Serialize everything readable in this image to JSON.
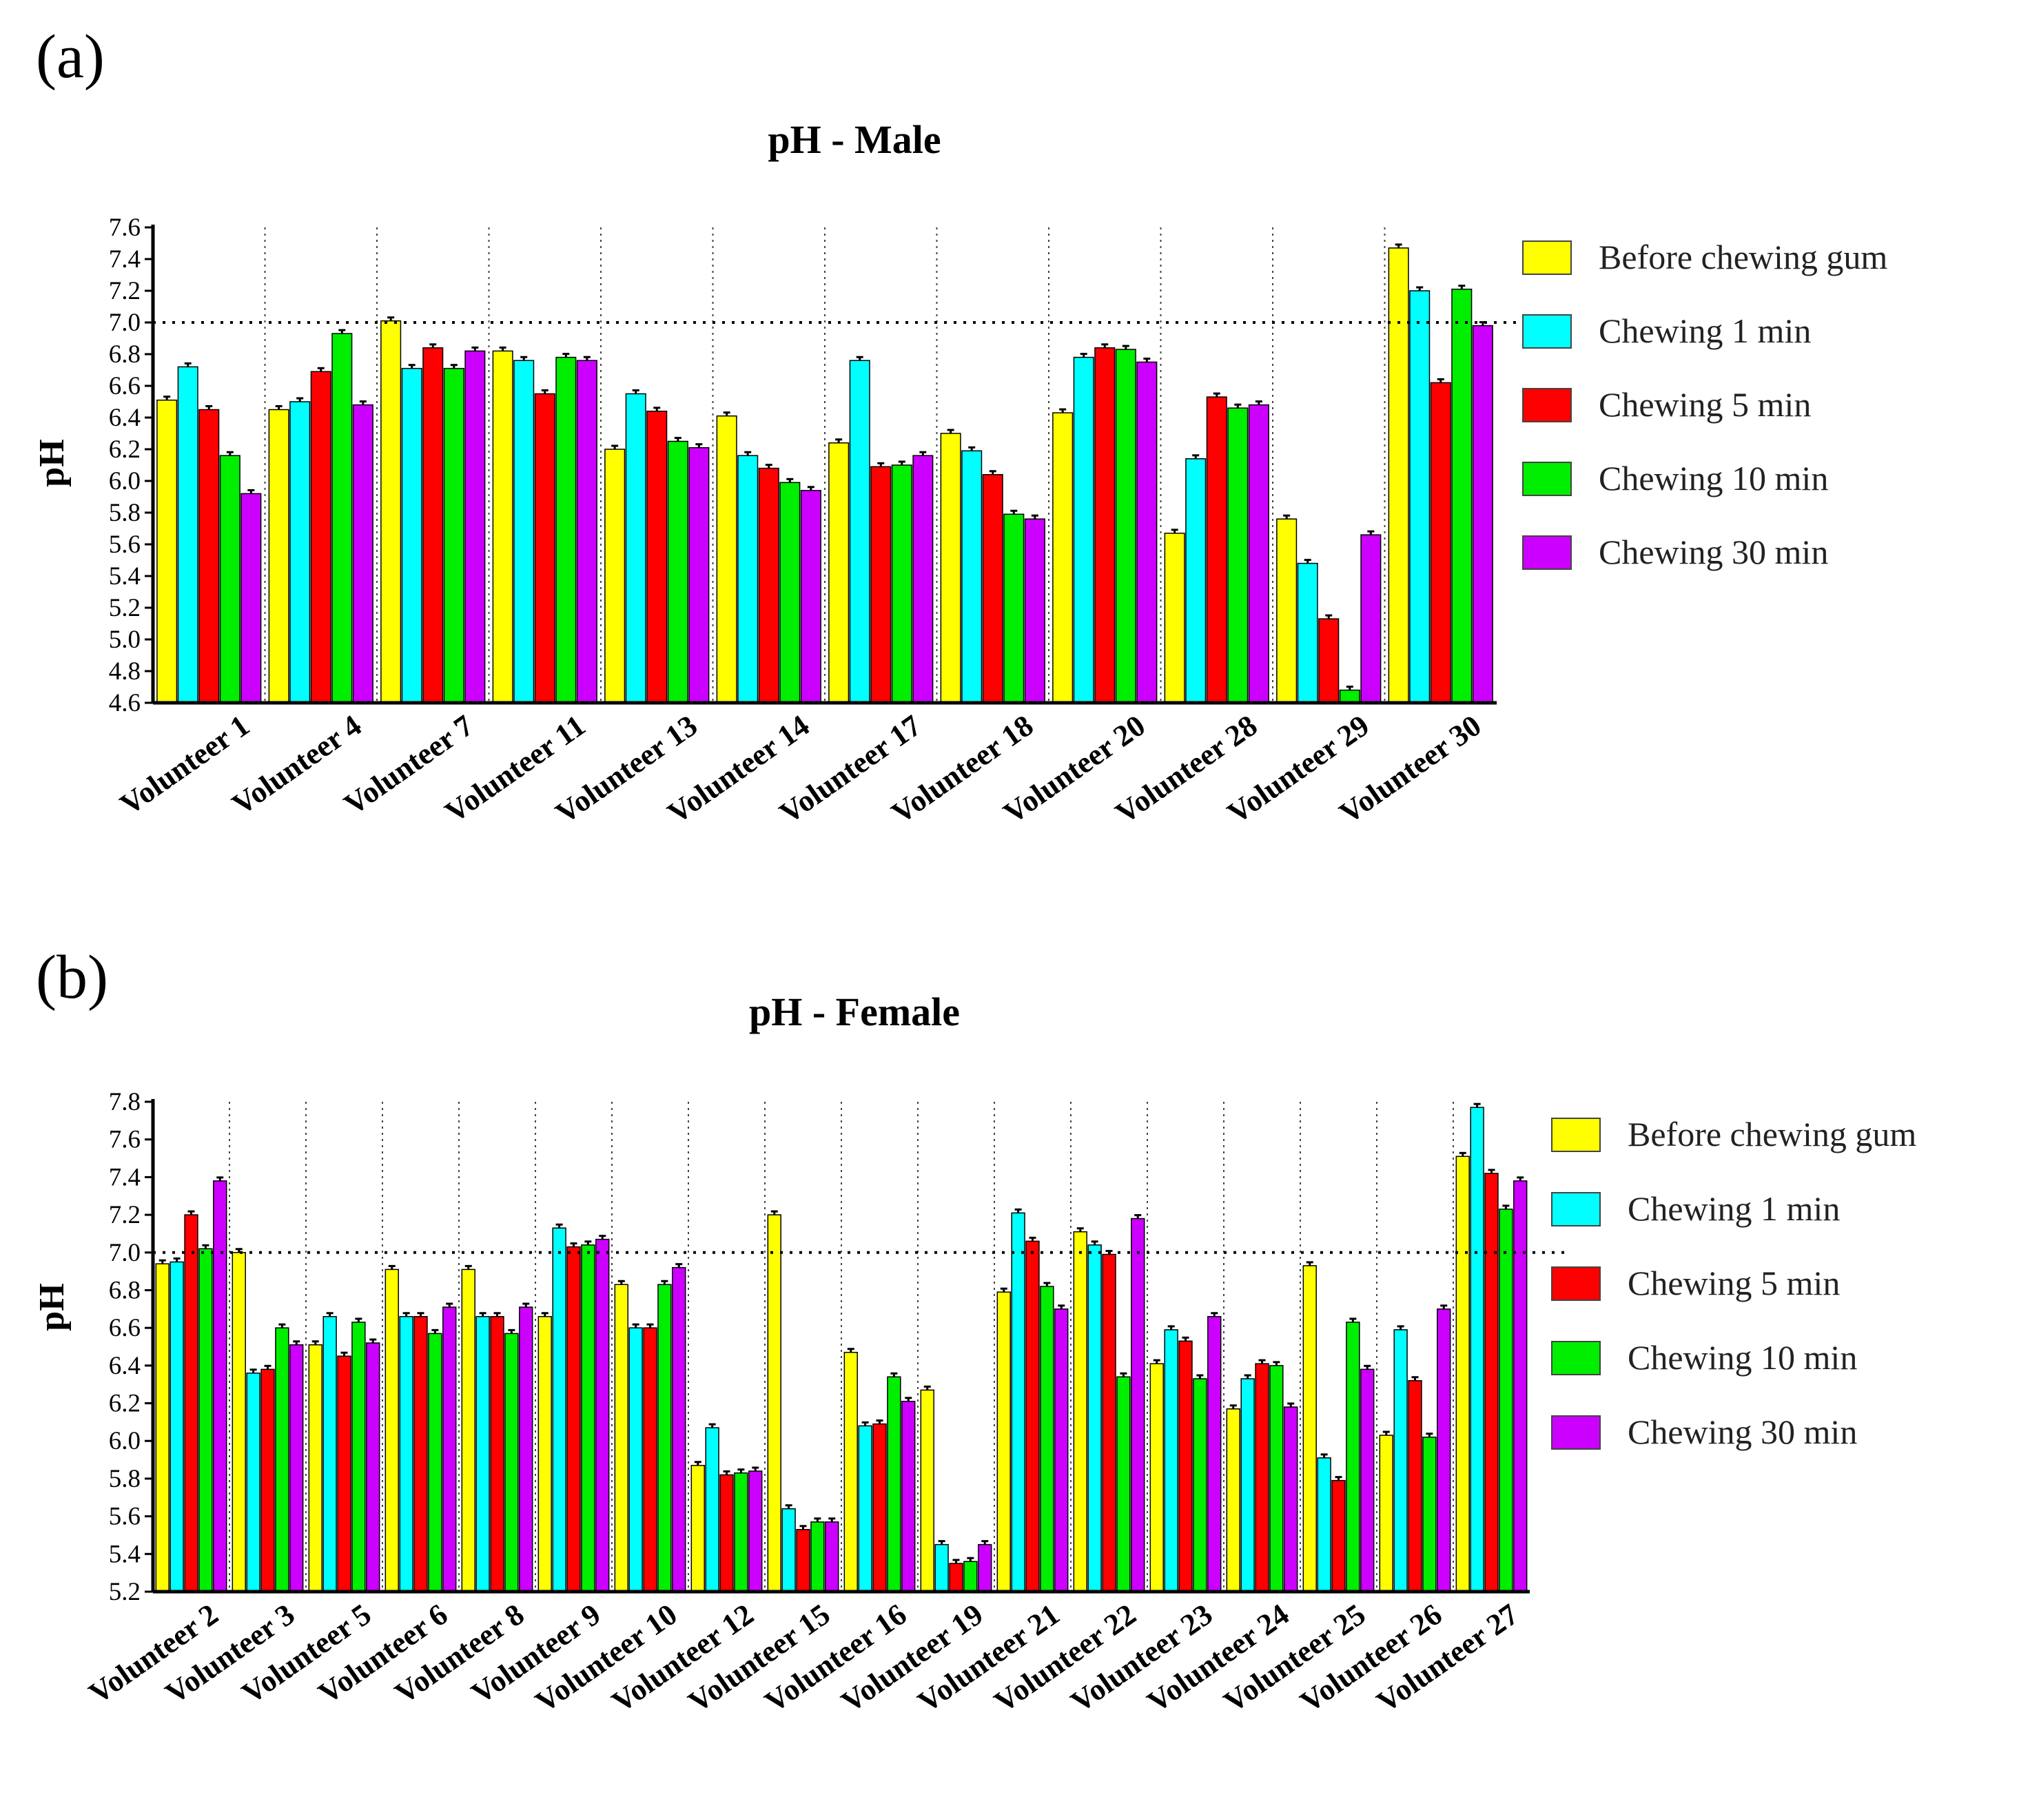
{
  "chart_data": [
    {
      "panel": "(a)",
      "type": "bar",
      "title": "pH - Male",
      "ylabel": "pH",
      "xlabel": "",
      "ylim": [
        4.6,
        7.6
      ],
      "ystep": 0.2,
      "yticks": [
        "4.6",
        "4.8",
        "5.0",
        "5.2",
        "5.4",
        "5.6",
        "5.8",
        "6.0",
        "6.2",
        "6.4",
        "6.6",
        "6.8",
        "7.0",
        "7.2",
        "7.4",
        "7.6"
      ],
      "reference_line": 7.0,
      "categories": [
        "Volunteer 1",
        "Volunteer 4",
        "Volunteer 7",
        "Volunteer 11",
        "Volunteer 13",
        "Volunteer 14",
        "Volunteer 17",
        "Volunteer 18",
        "Volunteer 20",
        "Volunteer 28",
        "Volunteer 29",
        "Volunteer 30"
      ],
      "series": [
        {
          "name": "Before chewing gum",
          "color": "#ffff00",
          "values": [
            6.51,
            6.45,
            7.01,
            6.82,
            6.2,
            6.41,
            6.24,
            6.3,
            6.43,
            5.67,
            5.76,
            7.47
          ]
        },
        {
          "name": "Chewing 1 min",
          "color": "#00ffff",
          "values": [
            6.72,
            6.5,
            6.71,
            6.76,
            6.55,
            6.16,
            6.76,
            6.19,
            6.78,
            6.14,
            5.48,
            7.2
          ]
        },
        {
          "name": "Chewing 5 min",
          "color": "#ff0000",
          "values": [
            6.45,
            6.69,
            6.84,
            6.55,
            6.44,
            6.08,
            6.09,
            6.04,
            6.84,
            6.53,
            5.13,
            6.62
          ]
        },
        {
          "name": "Chewing 10 min",
          "color": "#00ee00",
          "values": [
            6.16,
            6.93,
            6.71,
            6.78,
            6.25,
            5.99,
            6.1,
            5.79,
            6.83,
            6.46,
            4.68,
            7.21
          ]
        },
        {
          "name": "Chewing 30 min",
          "color": "#cc00ff",
          "values": [
            5.92,
            6.48,
            6.82,
            6.76,
            6.21,
            5.94,
            6.16,
            5.76,
            6.75,
            6.48,
            5.66,
            6.98
          ]
        }
      ],
      "legend": [
        "Before chewing gum",
        "Chewing 1 min",
        "Chewing 5 min",
        "Chewing 10 min",
        "Chewing 30 min"
      ],
      "legend_position": "right"
    },
    {
      "panel": "(b)",
      "type": "bar",
      "title": "pH - Female",
      "ylabel": "pH",
      "xlabel": "",
      "ylim": [
        5.2,
        7.8
      ],
      "ystep": 0.2,
      "yticks": [
        "5.2",
        "5.4",
        "5.6",
        "5.8",
        "6.0",
        "6.2",
        "6.4",
        "6.6",
        "6.8",
        "7.0",
        "7.2",
        "7.4",
        "7.6",
        "7.8"
      ],
      "reference_line": 7.0,
      "categories": [
        "Volunteer 2",
        "Volunteer 3",
        "Volunteer 5",
        "Volunteer 6",
        "Volunteer 8",
        "Volunteer 9",
        "Volunteer 10",
        "Volunteer 12",
        "Volunteer 15",
        "Volunteer 16",
        "Volunteer 19",
        "Volunteer 21",
        "Volunteer 22",
        "Volunteer 23",
        "Volunteer 24",
        "Volunteer 25",
        "Volunteer 26",
        "Volunteer 27"
      ],
      "series": [
        {
          "name": "Before chewing gum",
          "color": "#ffff00",
          "values": [
            6.94,
            7.0,
            6.51,
            6.91,
            6.91,
            6.66,
            6.83,
            5.87,
            7.2,
            6.47,
            6.27,
            6.79,
            7.11,
            6.41,
            6.17,
            6.93,
            6.03,
            7.51
          ]
        },
        {
          "name": "Chewing 1 min",
          "color": "#00ffff",
          "values": [
            6.95,
            6.36,
            6.66,
            6.66,
            6.66,
            7.13,
            6.6,
            6.07,
            5.64,
            6.08,
            5.45,
            7.21,
            7.04,
            6.59,
            6.33,
            5.91,
            6.59,
            7.77
          ]
        },
        {
          "name": "Chewing 5 min",
          "color": "#ff0000",
          "values": [
            7.2,
            6.38,
            6.45,
            6.66,
            6.66,
            7.03,
            6.6,
            5.82,
            5.53,
            6.09,
            5.35,
            7.06,
            6.99,
            6.53,
            6.41,
            5.79,
            6.32,
            7.42
          ]
        },
        {
          "name": "Chewing 10 min",
          "color": "#00ee00",
          "values": [
            7.02,
            6.6,
            6.63,
            6.57,
            6.57,
            7.04,
            6.83,
            5.83,
            5.57,
            6.34,
            5.36,
            6.82,
            6.34,
            6.33,
            6.4,
            6.63,
            6.02,
            7.23
          ]
        },
        {
          "name": "Chewing 30 min",
          "color": "#cc00ff",
          "values": [
            7.38,
            6.51,
            6.52,
            6.71,
            6.71,
            7.07,
            6.92,
            5.84,
            5.57,
            6.21,
            5.45,
            6.7,
            7.18,
            6.66,
            6.18,
            6.38,
            6.7,
            7.38
          ]
        }
      ],
      "legend": [
        "Before chewing gum",
        "Chewing 1 min",
        "Chewing 5 min",
        "Chewing 10 min",
        "Chewing 30 min"
      ],
      "legend_position": "right"
    }
  ]
}
